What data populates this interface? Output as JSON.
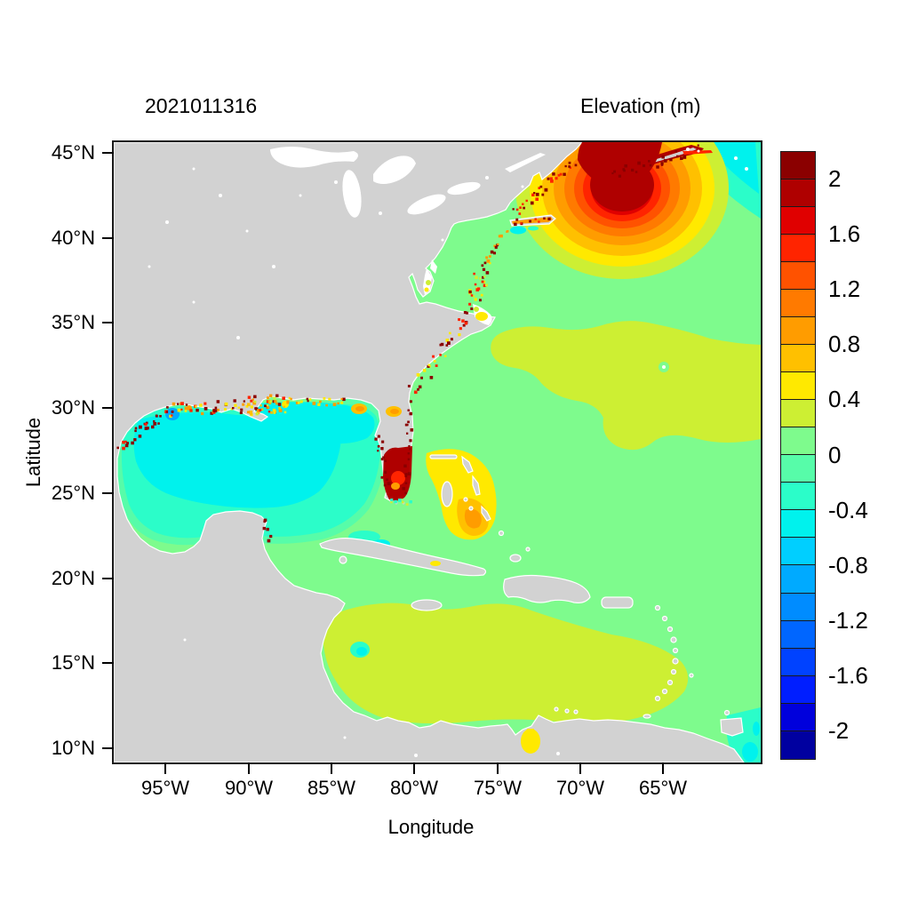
{
  "header": {
    "left_title": "2021011316",
    "right_title": "Elevation (m)"
  },
  "axes": {
    "x_label": "Longitude",
    "y_label": "Latitude",
    "x_ticks": [
      "95°W",
      "90°W",
      "85°W",
      "80°W",
      "75°W",
      "70°W",
      "65°W"
    ],
    "y_ticks": [
      "45°N",
      "40°N",
      "35°N",
      "30°N",
      "25°N",
      "20°N",
      "15°N",
      "10°N"
    ]
  },
  "palette": {
    "land": "#D2D2D2",
    "lake": "#FFFFFF",
    "frame": "#1A1A1A",
    "text": "#000000"
  },
  "chart_data": {
    "type": "heatmap",
    "title": "2021011316",
    "colorbar_title": "Elevation (m)",
    "xlabel": "Longitude",
    "ylabel": "Latitude",
    "x_ticks": [
      "95°W",
      "90°W",
      "85°W",
      "80°W",
      "75°W",
      "70°W",
      "65°W"
    ],
    "y_ticks": [
      "45°N",
      "40°N",
      "35°N",
      "30°N",
      "25°N",
      "20°N",
      "15°N",
      "10°N"
    ],
    "lon_range_deg_w": [
      98.2,
      59.2
    ],
    "lat_range_deg_n": [
      9.2,
      45.6
    ],
    "grid": false,
    "legend_position": "right-colorbar",
    "colorbar": {
      "min": -2.2,
      "max": 2.2,
      "step": 0.2,
      "tick_labels": [
        "2",
        "1.6",
        "1.2",
        "0.8",
        "0.4",
        "0",
        "-0.4",
        "-0.8",
        "-1.2",
        "-1.6",
        "-2"
      ],
      "colors": [
        "#8B0000",
        "#AF0000",
        "#E00000",
        "#FF2400",
        "#FF5200",
        "#FF7A00",
        "#FF9C00",
        "#FFC000",
        "#FFE900",
        "#CDEF33",
        "#7EFB8D",
        "#57FCA9",
        "#2BFDC9",
        "#00F2ED",
        "#00CFFF",
        "#00AAFF",
        "#008CFF",
        "#0066FF",
        "#0042FF",
        "#001EFF",
        "#0000DC",
        "#0000A0"
      ]
    },
    "land_color": "#D2D2D2",
    "water_no_data_color": "#FFFFFF",
    "regions": [
      {
        "name": "Open Atlantic background",
        "elevation_m": [
          0.0,
          0.2
        ],
        "color": "#7EFB8D"
      },
      {
        "name": "Central subtropical Atlantic (26-34N, 62-77W)",
        "elevation_m": [
          0.2,
          0.4
        ],
        "color": "#CDEF33"
      },
      {
        "name": "Gulf of Mexico outer basin",
        "elevation_m": [
          -0.4,
          -0.2
        ],
        "color": "#2BFDC9"
      },
      {
        "name": "Gulf of Mexico central-west basin",
        "elevation_m": [
          -0.6,
          -0.4
        ],
        "color": "#00F2ED"
      },
      {
        "name": "South Texas nearshore spot",
        "elevation_m": [
          -1.0,
          -0.8
        ],
        "color": "#00AAFF"
      },
      {
        "name": "Gulf of Maine / Bay of Fundy surge core",
        "elevation_m": [
          2.0,
          2.2
        ],
        "color": "#AF0000"
      },
      {
        "name": "Georges Bank rings around surge core",
        "elevation_m": [
          0.2,
          2.0
        ],
        "color": "#FF7A00"
      },
      {
        "name": "Scotian shelf band NE of Nova Scotia",
        "elevation_m": [
          -0.6,
          -0.2
        ],
        "color": "#00F2ED"
      },
      {
        "name": "South Florida / Everglades flooded cells",
        "elevation_m": [
          2.0,
          2.2
        ],
        "color": "#AF0000"
      },
      {
        "name": "Bahama banks crescent",
        "elevation_m": [
          0.4,
          0.8
        ],
        "color": "#FFC000"
      },
      {
        "name": "Southern Caribbean Sea",
        "elevation_m": [
          0.2,
          0.4
        ],
        "color": "#CDEF33"
      },
      {
        "name": "Lake Maracaibo",
        "elevation_m": [
          0.4,
          0.6
        ],
        "color": "#FFE900"
      },
      {
        "name": "US Gulf and Atlantic coastal wet cells (speckles)",
        "elevation_m": [
          2.0,
          2.2
        ],
        "color": "#8B0000"
      },
      {
        "name": "Long Island south shore strip",
        "elevation_m": [
          0.8,
          1.2
        ],
        "color": "#FF9C00"
      },
      {
        "name": "Pamlico Sound patch",
        "elevation_m": [
          0.4,
          0.6
        ],
        "color": "#FFE900"
      },
      {
        "name": "Trinidad / Orinoco shelf corner",
        "elevation_m": [
          -0.8,
          -0.2
        ],
        "color": "#2BFDC9"
      },
      {
        "name": "Cuba north-coast lagoon patches",
        "elevation_m": [
          -0.6,
          -0.2
        ],
        "color": "#2BFDC9"
      }
    ]
  }
}
